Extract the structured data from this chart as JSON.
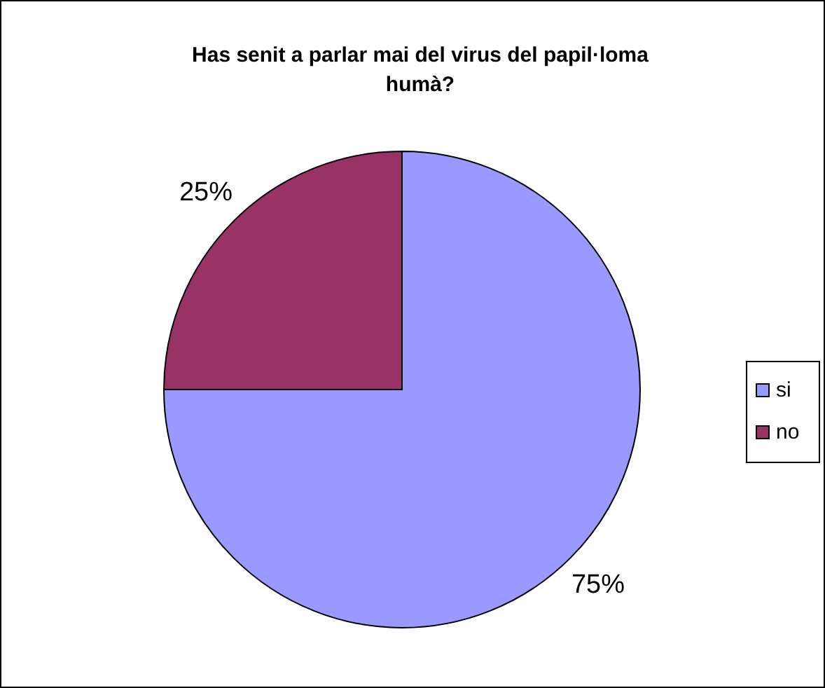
{
  "chart_data": {
    "type": "pie",
    "title": "Has senit a parlar mai del virus del papil·loma humà?",
    "categories": [
      "si",
      "no"
    ],
    "values": [
      75,
      25
    ],
    "colors": [
      "#9999ff",
      "#993366"
    ],
    "value_labels": [
      "75%",
      "25%"
    ],
    "legend": "right"
  }
}
